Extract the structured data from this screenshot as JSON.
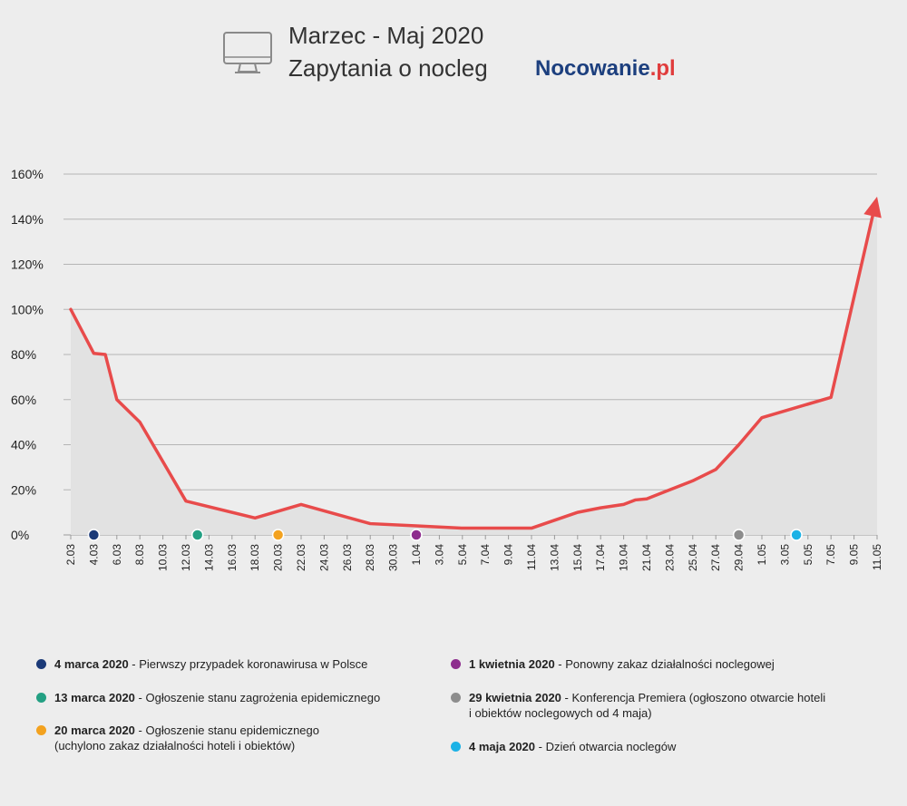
{
  "header": {
    "title_line1": "Marzec - Maj 2020",
    "title_line2": "Zapytania o nocleg",
    "brand_main": "Nocowanie",
    "brand_suffix": ".pl",
    "icon": "monitor-icon"
  },
  "colors": {
    "line": "#e84b4b",
    "brand_blue": "#1c3f7e",
    "brand_red": "#e03c3c"
  },
  "chart_data": {
    "type": "line",
    "title": "Zapytania o nocleg",
    "xlabel": "",
    "ylabel": "",
    "ylim": [
      0,
      160
    ],
    "yticks": [
      "0%",
      "20%",
      "40%",
      "60%",
      "80%",
      "100%",
      "120%",
      "140%",
      "160%"
    ],
    "grid": true,
    "x_tick_labels": [
      "2.03",
      "4.03",
      "6.03",
      "8.03",
      "10.03",
      "12.03",
      "14.03",
      "16.03",
      "18.03",
      "20.03",
      "22.03",
      "24.03",
      "26.03",
      "28.03",
      "30.03",
      "1.04",
      "3.04",
      "5.04",
      "7.04",
      "9.04",
      "11.04",
      "13.04",
      "15.04",
      "17.04",
      "19.04",
      "21.04",
      "23.04",
      "25.04",
      "27.04",
      "29.04",
      "1.05",
      "3.05",
      "5.05",
      "7.05",
      "9.05",
      "11.05"
    ],
    "series": [
      {
        "x": [
          "2.03",
          "4.03",
          "5.03",
          "6.03",
          "8.03",
          "12.03",
          "18.03",
          "22.03",
          "28.03",
          "1.04",
          "5.04",
          "11.04",
          "15.04",
          "17.04",
          "19.04",
          "20.04",
          "21.04",
          "23.04",
          "25.04",
          "27.04",
          "29.04",
          "1.05",
          "7.05",
          "11.05"
        ],
        "values": [
          100,
          80.5,
          80,
          60,
          50,
          15,
          7.5,
          13.5,
          5,
          4,
          3,
          3,
          10,
          12,
          13.5,
          15.5,
          16,
          20,
          24,
          29,
          40,
          52,
          61,
          150
        ],
        "ends_with_arrow": true
      }
    ],
    "events": [
      {
        "x": "4.03",
        "color": "#1b3a78"
      },
      {
        "x": "13.03",
        "color": "#23a083"
      },
      {
        "x": "20.03",
        "color": "#f3a21f"
      },
      {
        "x": "1.04",
        "color": "#8e2d8e"
      },
      {
        "x": "29.04",
        "color": "#8d8d8d"
      },
      {
        "x": "4.05",
        "color": "#1cb2e6"
      }
    ]
  },
  "legend": [
    {
      "color": "#1b3a78",
      "bold": "4 marca 2020",
      "text": " - Pierwszy przypadek koronawirusa w Polsce",
      "text2": ""
    },
    {
      "color": "#23a083",
      "bold": "13 marca 2020",
      "text": " - Ogłoszenie stanu zagrożenia epidemicznego",
      "text2": ""
    },
    {
      "color": "#f3a21f",
      "bold": "20 marca 2020",
      "text": " - Ogłoszenie stanu epidemicznego",
      "text2": "(uchylono zakaz działalności hoteli i obiektów)"
    },
    {
      "color": "#8e2d8e",
      "bold": "1 kwietnia 2020",
      "text": " - Ponowny zakaz działalności noclegowej",
      "text2": ""
    },
    {
      "color": "#8d8d8d",
      "bold": "29 kwietnia 2020",
      "text": " - Konferencja Premiera (ogłoszono otwarcie hoteli",
      "text2": "i obiektów noclegowych od 4 maja)"
    },
    {
      "color": "#1cb2e6",
      "bold": "4 maja 2020",
      "text": " - Dzień otwarcia noclegów",
      "text2": ""
    }
  ]
}
